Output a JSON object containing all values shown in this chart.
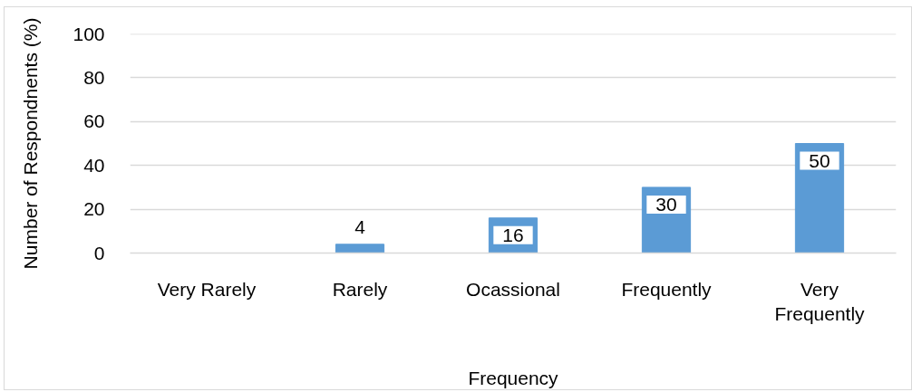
{
  "chart_data": {
    "type": "bar",
    "xlabel": "Frequency",
    "ylabel": "Number of Respondnents (%)",
    "categories": [
      "Very Rarely",
      "Rarely",
      "Ocassional",
      "Frequently",
      "Very Frequently"
    ],
    "values": [
      0,
      4,
      16,
      30,
      50
    ],
    "color": "#5b9bd5",
    "ylim": [
      0,
      100
    ],
    "yticks": [
      0,
      20,
      40,
      60,
      80,
      100
    ],
    "grid": "y",
    "value_labels": [
      null,
      "4",
      "16",
      "30",
      "50"
    ]
  }
}
